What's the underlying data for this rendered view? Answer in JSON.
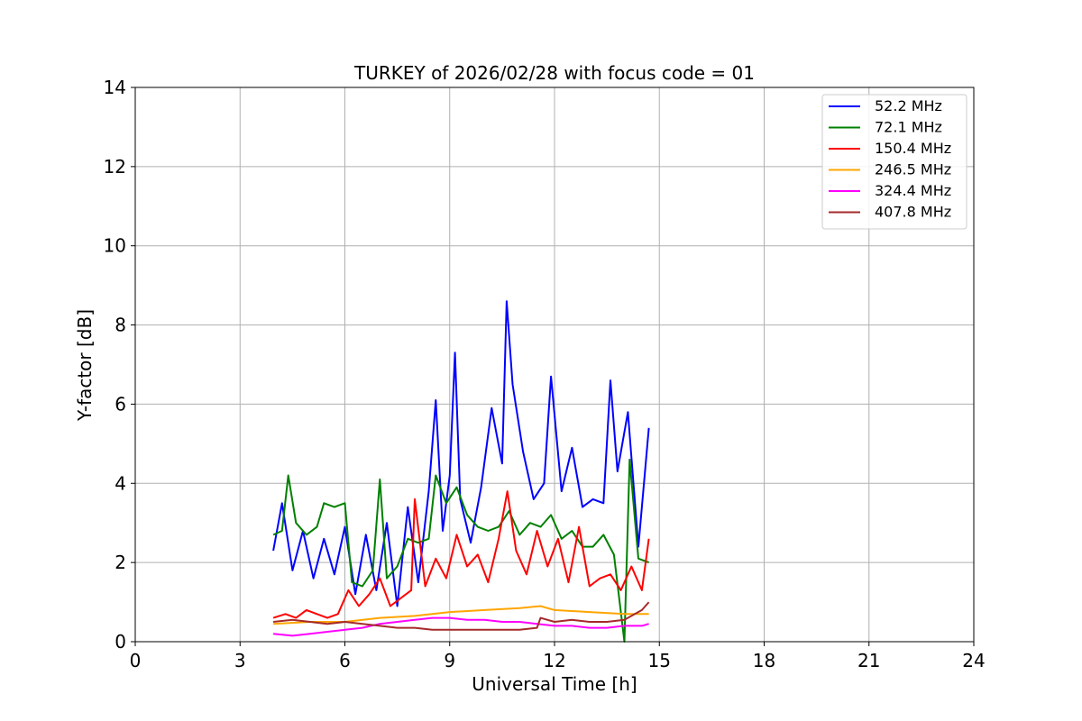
{
  "chart_data": {
    "type": "line",
    "title": "TURKEY of 2026/02/28 with focus code = 01",
    "xlabel": "Universal Time [h]",
    "ylabel": "Y-factor [dB]",
    "xlim": [
      0,
      24
    ],
    "ylim": [
      0,
      14
    ],
    "xticks": [
      0,
      3,
      6,
      9,
      12,
      15,
      18,
      21,
      24
    ],
    "yticks": [
      0,
      2,
      4,
      6,
      8,
      10,
      12,
      14
    ],
    "grid": true,
    "legend_position": "top-right",
    "series": [
      {
        "name": " 52.2 MHz",
        "color": "#0000ff",
        "x": [
          3.95,
          4.2,
          4.5,
          4.8,
          5.1,
          5.4,
          5.7,
          6.0,
          6.3,
          6.6,
          6.9,
          7.2,
          7.5,
          7.8,
          8.1,
          8.4,
          8.6,
          8.8,
          9.0,
          9.15,
          9.3,
          9.6,
          9.9,
          10.2,
          10.5,
          10.63,
          10.8,
          11.1,
          11.4,
          11.7,
          11.9,
          12.2,
          12.5,
          12.8,
          13.1,
          13.4,
          13.6,
          13.8,
          14.1,
          14.4,
          14.7
        ],
        "y": [
          2.3,
          3.5,
          1.8,
          2.8,
          1.6,
          2.6,
          1.7,
          2.9,
          1.2,
          2.7,
          1.3,
          3.0,
          0.9,
          3.4,
          1.5,
          3.8,
          6.1,
          2.8,
          4.2,
          7.3,
          3.6,
          2.5,
          3.9,
          5.9,
          4.5,
          8.6,
          6.5,
          4.8,
          3.6,
          4.0,
          6.7,
          3.8,
          4.9,
          3.4,
          3.6,
          3.5,
          6.6,
          4.3,
          5.8,
          2.4,
          5.4
        ]
      },
      {
        "name": " 72.1 MHz",
        "color": "#008000",
        "x": [
          3.95,
          4.2,
          4.38,
          4.6,
          4.9,
          5.2,
          5.4,
          5.7,
          6.0,
          6.2,
          6.5,
          6.8,
          7.0,
          7.2,
          7.5,
          7.8,
          8.1,
          8.4,
          8.6,
          8.9,
          9.2,
          9.5,
          9.8,
          10.1,
          10.4,
          10.7,
          11.0,
          11.3,
          11.6,
          11.9,
          12.2,
          12.5,
          12.8,
          13.1,
          13.4,
          13.7,
          14.0,
          14.15,
          14.4,
          14.7
        ],
        "y": [
          2.7,
          2.8,
          4.2,
          3.0,
          2.7,
          2.9,
          3.5,
          3.4,
          3.5,
          1.5,
          1.4,
          1.8,
          4.1,
          1.6,
          1.9,
          2.6,
          2.5,
          2.6,
          4.2,
          3.5,
          3.9,
          3.2,
          2.9,
          2.8,
          2.9,
          3.3,
          2.7,
          3.0,
          2.9,
          3.2,
          2.6,
          2.8,
          2.4,
          2.4,
          2.7,
          2.2,
          0.0,
          4.6,
          2.1,
          2.0
        ]
      },
      {
        "name": "150.4 MHz",
        "color": "#ff0000",
        "x": [
          3.95,
          4.3,
          4.6,
          4.9,
          5.2,
          5.5,
          5.8,
          6.1,
          6.4,
          6.7,
          7.0,
          7.3,
          7.6,
          7.9,
          8.0,
          8.3,
          8.6,
          8.9,
          9.2,
          9.5,
          9.8,
          10.1,
          10.4,
          10.65,
          10.9,
          11.2,
          11.5,
          11.8,
          12.1,
          12.4,
          12.7,
          13.0,
          13.3,
          13.6,
          13.9,
          14.2,
          14.5,
          14.7
        ],
        "y": [
          0.6,
          0.7,
          0.6,
          0.8,
          0.7,
          0.6,
          0.7,
          1.3,
          0.9,
          1.2,
          1.6,
          0.9,
          1.1,
          1.3,
          3.6,
          1.4,
          2.1,
          1.6,
          2.7,
          1.9,
          2.2,
          1.5,
          2.6,
          3.8,
          2.3,
          1.7,
          2.8,
          1.9,
          2.6,
          1.5,
          2.9,
          1.4,
          1.6,
          1.7,
          1.3,
          1.9,
          1.3,
          2.6
        ]
      },
      {
        "name": "246.5 MHz",
        "color": "#ffa500",
        "x": [
          3.95,
          5.0,
          6.0,
          7.0,
          8.0,
          9.0,
          10.0,
          11.0,
          11.6,
          12.0,
          13.0,
          14.0,
          14.7
        ],
        "y": [
          0.45,
          0.5,
          0.5,
          0.6,
          0.65,
          0.75,
          0.8,
          0.85,
          0.9,
          0.8,
          0.75,
          0.7,
          0.7
        ]
      },
      {
        "name": "324.4 MHz",
        "color": "#ff00ff",
        "x": [
          3.95,
          4.5,
          5.0,
          5.5,
          6.0,
          6.5,
          7.0,
          7.5,
          8.0,
          8.5,
          9.0,
          9.5,
          10.0,
          10.5,
          11.0,
          11.5,
          12.0,
          12.5,
          13.0,
          13.5,
          14.0,
          14.5,
          14.7
        ],
        "y": [
          0.2,
          0.15,
          0.2,
          0.25,
          0.3,
          0.35,
          0.45,
          0.5,
          0.55,
          0.6,
          0.6,
          0.55,
          0.55,
          0.5,
          0.5,
          0.45,
          0.4,
          0.4,
          0.35,
          0.35,
          0.4,
          0.4,
          0.45
        ]
      },
      {
        "name": "407.8 MHz",
        "color": "#a52a2a",
        "x": [
          3.95,
          4.5,
          5.0,
          5.5,
          6.0,
          6.5,
          7.0,
          7.5,
          8.0,
          8.5,
          9.0,
          9.5,
          10.0,
          10.5,
          11.0,
          11.5,
          11.6,
          12.0,
          12.5,
          13.0,
          13.5,
          14.0,
          14.5,
          14.7
        ],
        "y": [
          0.5,
          0.55,
          0.5,
          0.45,
          0.5,
          0.45,
          0.4,
          0.35,
          0.35,
          0.3,
          0.3,
          0.3,
          0.3,
          0.3,
          0.3,
          0.35,
          0.6,
          0.5,
          0.55,
          0.5,
          0.5,
          0.55,
          0.8,
          1.0
        ]
      }
    ]
  }
}
